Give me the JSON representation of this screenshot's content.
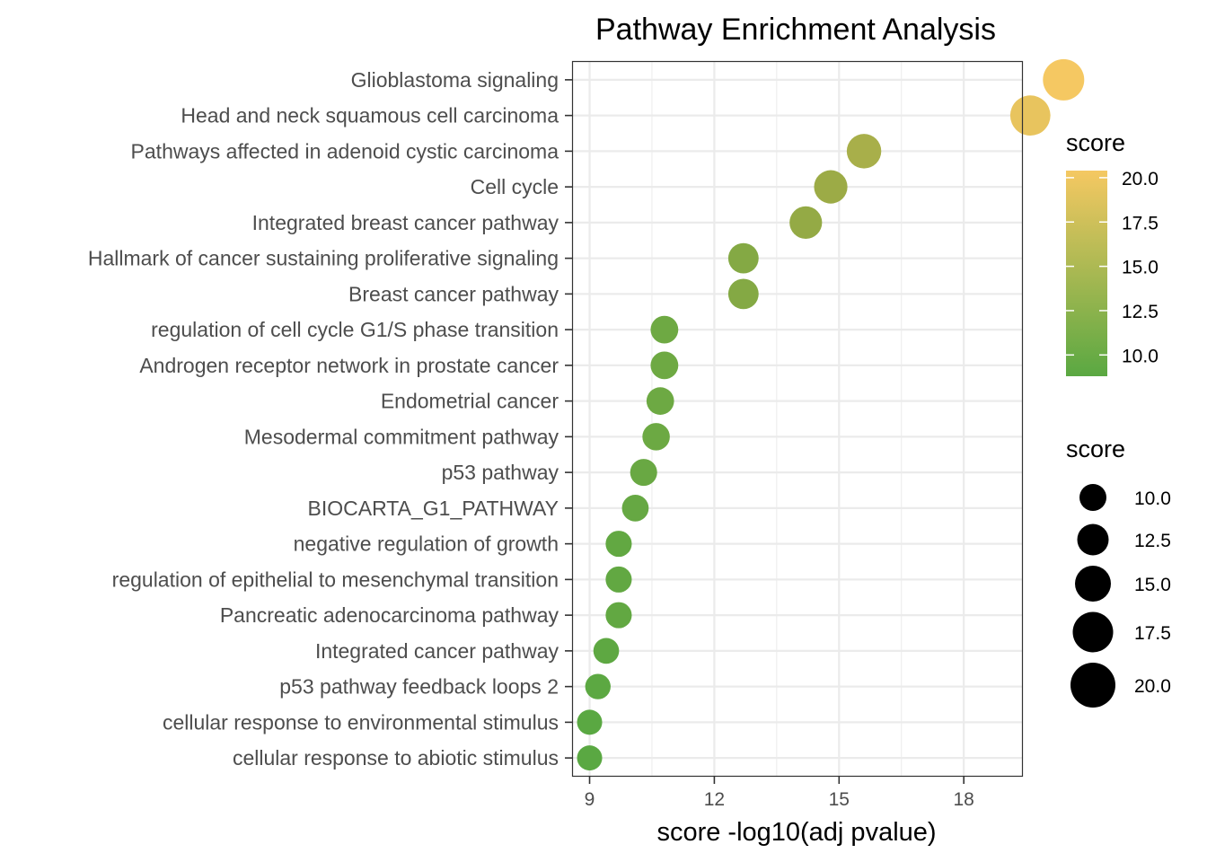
{
  "chart_data": {
    "type": "scatter",
    "title": "Pathway Enrichment Analysis",
    "xlabel": "score -log10(adj pvalue)",
    "ylabel": "",
    "xlim": [
      8.6,
      19.4
    ],
    "xticks": [
      "9",
      "12",
      "15",
      "18"
    ],
    "xtick_values": [
      9,
      12,
      15,
      18
    ],
    "grid": true,
    "points": [
      {
        "label": "Glioblastoma signaling",
        "x": 20.4
      },
      {
        "label": "Head and neck squamous cell carcinoma",
        "x": 19.6
      },
      {
        "label": "Pathways affected in adenoid cystic carcinoma",
        "x": 15.6
      },
      {
        "label": "Cell cycle",
        "x": 14.8
      },
      {
        "label": "Integrated breast cancer pathway",
        "x": 14.2
      },
      {
        "label": "Hallmark of cancer sustaining proliferative signaling",
        "x": 12.7
      },
      {
        "label": "Breast cancer pathway",
        "x": 12.7
      },
      {
        "label": "regulation of cell cycle G1/S phase transition",
        "x": 10.8
      },
      {
        "label": "Androgen receptor network in prostate cancer",
        "x": 10.8
      },
      {
        "label": "Endometrial cancer",
        "x": 10.7
      },
      {
        "label": "Mesodermal commitment pathway",
        "x": 10.6
      },
      {
        "label": "p53 pathway",
        "x": 10.3
      },
      {
        "label": "BIOCARTA_G1_PATHWAY",
        "x": 10.1
      },
      {
        "label": "negative regulation of growth",
        "x": 9.7
      },
      {
        "label": "regulation of epithelial to mesenchymal transition",
        "x": 9.7
      },
      {
        "label": "Pancreatic adenocarcinoma pathway",
        "x": 9.7
      },
      {
        "label": "Integrated cancer pathway",
        "x": 9.4
      },
      {
        "label": "p53 pathway feedback loops 2",
        "x": 9.2
      },
      {
        "label": "cellular response to environmental stimulus",
        "x": 9.0
      },
      {
        "label": "cellular response to abiotic stimulus",
        "x": 9.0
      }
    ],
    "color_legend": {
      "title": "score",
      "labels": [
        "20.0",
        "17.5",
        "15.0",
        "12.5",
        "10.0"
      ],
      "values": [
        20.0,
        17.5,
        15.0,
        12.5,
        10.0
      ],
      "range": [
        9.0,
        20.4
      ],
      "low_color": "#5aa842",
      "high_color": "#f5c862"
    },
    "size_legend": {
      "title": "score",
      "labels": [
        "10.0",
        "12.5",
        "15.0",
        "17.5",
        "20.0"
      ],
      "values": [
        10.0,
        12.5,
        15.0,
        17.5,
        20.0
      ],
      "color": "#000000"
    },
    "colors": {
      "panel_border": "#333333",
      "grid": "#ebebeb",
      "tick": "#333333"
    }
  }
}
